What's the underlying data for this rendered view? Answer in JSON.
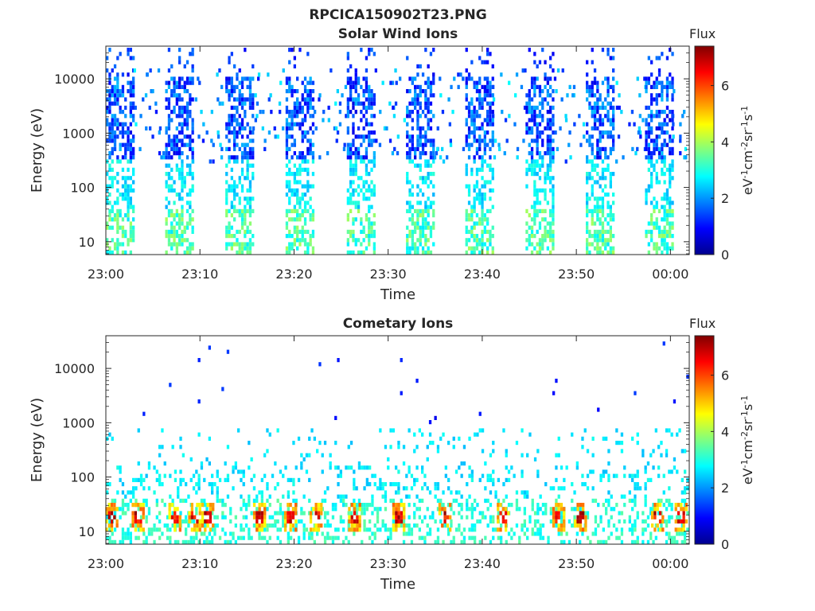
{
  "figure_title": "RPCICA150902T23.PNG",
  "chart_data": [
    {
      "type": "heatmap",
      "title": "Solar Wind Ions",
      "xlabel": "Time",
      "ylabel": "Energy (eV)",
      "x_ticks": [
        "23:00",
        "23:10",
        "23:20",
        "23:30",
        "23:40",
        "23:50",
        "00:00"
      ],
      "x_range_minutes": [
        0,
        62
      ],
      "y_scale": "log",
      "y_ticks": [
        "10",
        "100",
        "1000",
        "10000"
      ],
      "y_range": [
        5.8,
        40000
      ],
      "colorbar": {
        "label": "Flux",
        "unit": "eV-1cm-2sr-1s-1",
        "ticks": [
          "0",
          "2",
          "4",
          "6"
        ],
        "range": [
          0,
          7.4
        ]
      },
      "bursts_minutes": [
        0,
        6.3,
        12.7,
        19.1,
        25.6,
        31.9,
        38.2,
        44.6,
        51.0,
        57.3
      ],
      "pattern": "periodic bursts; high flux near 20 eV, moderate flux 1-10 keV"
    },
    {
      "type": "heatmap",
      "title": "Cometary Ions",
      "xlabel": "Time",
      "ylabel": "Energy (eV)",
      "x_ticks": [
        "23:00",
        "23:10",
        "23:20",
        "23:30",
        "23:40",
        "23:50",
        "00:00"
      ],
      "x_range_minutes": [
        0,
        62
      ],
      "y_scale": "log",
      "y_ticks": [
        "10",
        "100",
        "1000",
        "10000"
      ],
      "y_range": [
        5.8,
        40000
      ],
      "colorbar": {
        "label": "Flux",
        "unit": "eV-1cm-2sr-1s-1",
        "ticks": [
          "0",
          "2",
          "4",
          "6"
        ],
        "range": [
          0,
          7.4
        ]
      },
      "hotspots_minutes": [
        0.5,
        3.3,
        7.2,
        9.3,
        10.7,
        16.2,
        19.5,
        22.2,
        26.3,
        31.0,
        35.9,
        42.1,
        48.0,
        50.3,
        58.5,
        61.0
      ],
      "pattern": "peak flux 10-40 eV with red hot spots; sparse dots up to 10 keV"
    }
  ]
}
